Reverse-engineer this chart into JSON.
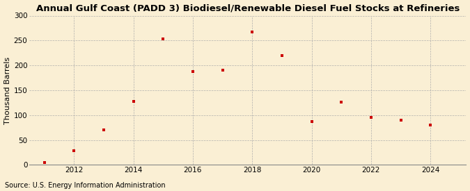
{
  "title": "Annual Gulf Coast (PADD 3) Biodiesel/Renewable Diesel Fuel Stocks at Refineries",
  "ylabel": "Thousand Barrels",
  "source": "Source: U.S. Energy Information Administration",
  "background_color": "#faefd4",
  "years": [
    2011,
    2012,
    2013,
    2014,
    2015,
    2016,
    2017,
    2018,
    2019,
    2020,
    2021,
    2022,
    2023,
    2024
  ],
  "values": [
    5,
    28,
    70,
    128,
    253,
    187,
    190,
    267,
    220,
    87,
    126,
    95,
    90,
    80
  ],
  "dot_color": "#cc0000",
  "dot_size": 12,
  "ylim": [
    0,
    300
  ],
  "yticks": [
    0,
    50,
    100,
    150,
    200,
    250,
    300
  ],
  "xlim": [
    2010.5,
    2025.2
  ],
  "xticks": [
    2012,
    2014,
    2016,
    2018,
    2020,
    2022,
    2024
  ],
  "title_fontsize": 9.5,
  "label_fontsize": 8,
  "tick_fontsize": 7.5,
  "source_fontsize": 7
}
